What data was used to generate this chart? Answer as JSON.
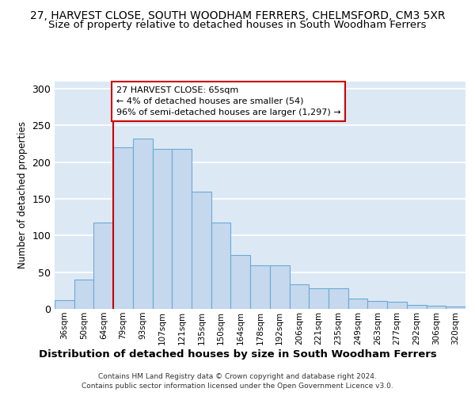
{
  "title": "27, HARVEST CLOSE, SOUTH WOODHAM FERRERS, CHELMSFORD, CM3 5XR",
  "subtitle": "Size of property relative to detached houses in South Woodham Ferrers",
  "xlabel": "Distribution of detached houses by size in South Woodham Ferrers",
  "ylabel": "Number of detached properties",
  "categories": [
    "36sqm",
    "50sqm",
    "64sqm",
    "79sqm",
    "93sqm",
    "107sqm",
    "121sqm",
    "135sqm",
    "150sqm",
    "164sqm",
    "178sqm",
    "192sqm",
    "206sqm",
    "221sqm",
    "235sqm",
    "249sqm",
    "263sqm",
    "277sqm",
    "292sqm",
    "306sqm",
    "320sqm"
  ],
  "values": [
    12,
    40,
    118,
    220,
    232,
    218,
    218,
    160,
    118,
    73,
    59,
    59,
    33,
    28,
    28,
    14,
    11,
    10,
    5,
    4,
    3
  ],
  "bar_color": "#c5d8ee",
  "bar_edgecolor": "#6aaad4",
  "annotation_line1": "27 HARVEST CLOSE: 65sqm",
  "annotation_line2": "← 4% of detached houses are smaller (54)",
  "annotation_line3": "96% of semi-detached houses are larger (1,297) →",
  "vline_color": "#cc0000",
  "annotation_box_edgecolor": "#cc0000",
  "footer1": "Contains HM Land Registry data © Crown copyright and database right 2024.",
  "footer2": "Contains public sector information licensed under the Open Government Licence v3.0.",
  "plot_bg_color": "#dce9f5",
  "ylim_max": 310,
  "vline_index": 2.5,
  "title_fontsize": 10,
  "subtitle_fontsize": 9.5,
  "xlabel_fontsize": 9.5
}
